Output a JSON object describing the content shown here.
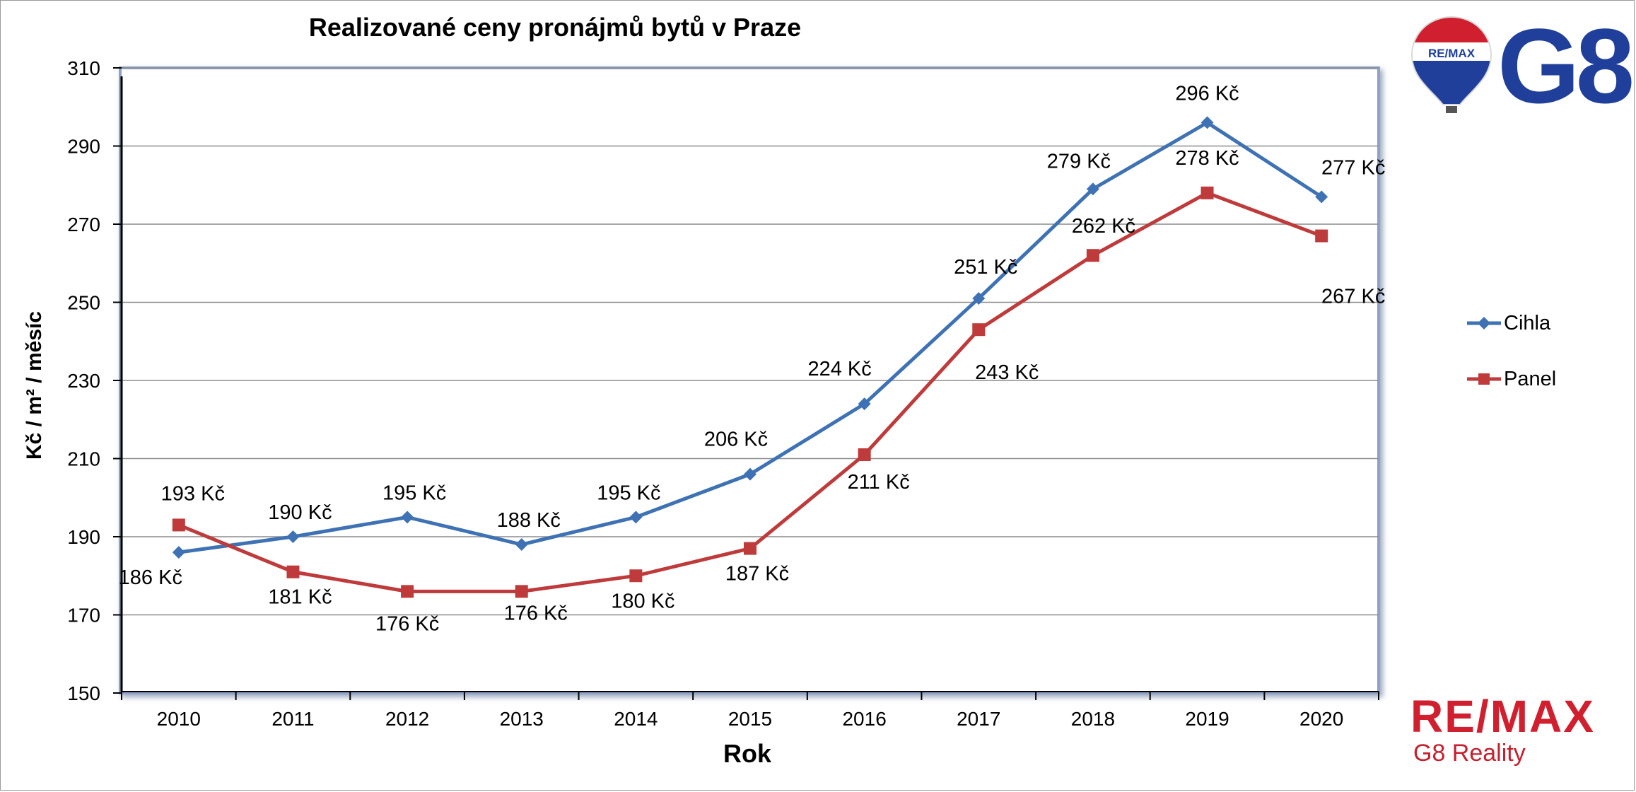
{
  "chart_data": {
    "type": "line",
    "title": "Realizované ceny pronájmů bytů v Praze",
    "xlabel": "Rok",
    "ylabel": "Kč / m² / měsíc",
    "categories": [
      "2010",
      "2011",
      "2012",
      "2013",
      "2014",
      "2015",
      "2016",
      "2017",
      "2018",
      "2019",
      "2020"
    ],
    "ylim": [
      150,
      310
    ],
    "yticks": [
      150,
      170,
      190,
      210,
      230,
      250,
      270,
      290,
      310
    ],
    "grid": true,
    "legend_position": "right",
    "series": [
      {
        "name": "Cihla",
        "color": "#3e72b4",
        "marker": "diamond",
        "values": [
          186,
          190,
          195,
          188,
          195,
          206,
          224,
          251,
          279,
          296,
          277
        ],
        "labels": [
          "186 Kč",
          "190 Kč",
          "195 Kč",
          "188 Kč",
          "195 Kč",
          "206 Kč",
          "224 Kč",
          "251 Kč",
          "279 Kč",
          "296 Kč",
          "277 Kč"
        ]
      },
      {
        "name": "Panel",
        "color": "#bf3a3a",
        "marker": "square",
        "values": [
          193,
          181,
          176,
          176,
          180,
          187,
          211,
          243,
          262,
          278,
          267
        ],
        "labels": [
          "193 Kč",
          "181 Kč",
          "176 Kč",
          "176 Kč",
          "180 Kč",
          "187 Kč",
          "211 Kč",
          "243 Kč",
          "262 Kč",
          "278 Kč",
          "267 Kč"
        ]
      }
    ]
  },
  "logos": {
    "balloon_text": "RE/MAX",
    "corner_logo_text": "G8",
    "brand_name": "RE/MAX",
    "brand_sub": "G8 Reality"
  }
}
